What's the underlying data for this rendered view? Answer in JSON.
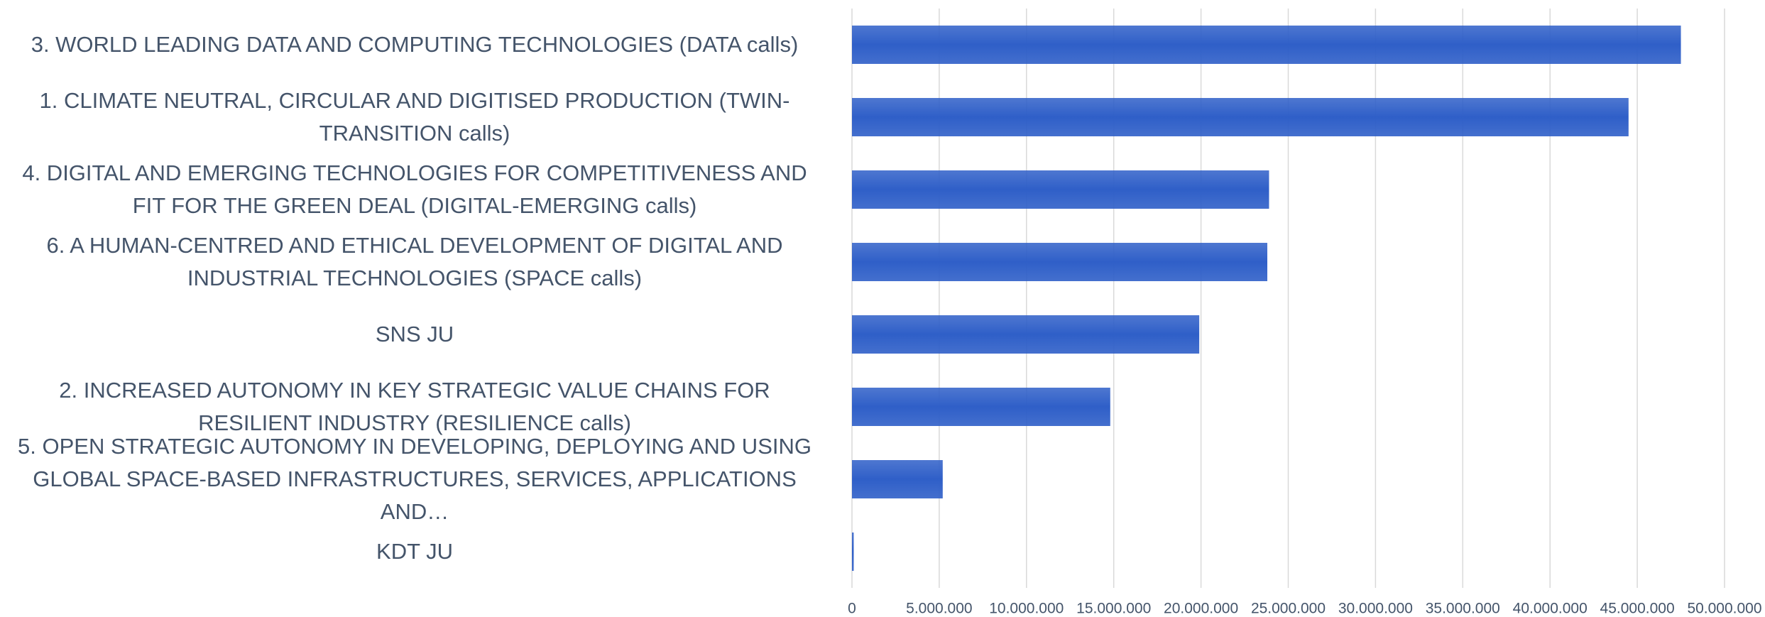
{
  "chart_data": {
    "type": "hbar",
    "categories": [
      "3. WORLD LEADING DATA AND COMPUTING TECHNOLOGIES (DATA calls)",
      "1. CLIMATE NEUTRAL, CIRCULAR AND DIGITISED PRODUCTION (TWIN-TRANSITION calls)",
      "4. DIGITAL AND EMERGING TECHNOLOGIES FOR COMPETITIVENESS AND FIT FOR THE GREEN DEAL (DIGITAL-EMERGING calls)",
      "6. A HUMAN-CENTRED AND ETHICAL DEVELOPMENT OF DIGITAL AND INDUSTRIAL TECHNOLOGIES (SPACE calls)",
      "SNS JU",
      "2. INCREASED AUTONOMY IN KEY STRATEGIC VALUE CHAINS FOR RESILIENT INDUSTRY (RESILIENCE calls)",
      "5. OPEN STRATEGIC AUTONOMY IN DEVELOPING, DEPLOYING AND USING GLOBAL SPACE-BASED INFRASTRUCTURES, SERVICES, APPLICATIONS AND…",
      "KDT JU"
    ],
    "values": [
      47500000,
      44500000,
      23900000,
      23800000,
      19900000,
      14800000,
      5200000,
      100000
    ],
    "color": "#2f5fc8",
    "xlim": [
      0,
      50000000
    ],
    "xticks": [
      0,
      {
        "value": 5000000,
        "label": "5.000.000"
      },
      {
        "value": 10000000,
        "label": "10.000.000"
      },
      {
        "value": 15000000,
        "label": "15.000.000"
      },
      {
        "value": 20000000,
        "label": "20.000.000"
      },
      {
        "value": 25000000,
        "label": "25.000.000"
      },
      {
        "value": 30000000,
        "label": "30.000.000"
      },
      {
        "value": 35000000,
        "label": "35.000.000"
      },
      {
        "value": 40000000,
        "label": "40.000.000"
      },
      {
        "value": 45000000,
        "label": "45.000.000"
      },
      {
        "value": 50000000,
        "label": "50.000.000"
      }
    ],
    "grid": true
  }
}
